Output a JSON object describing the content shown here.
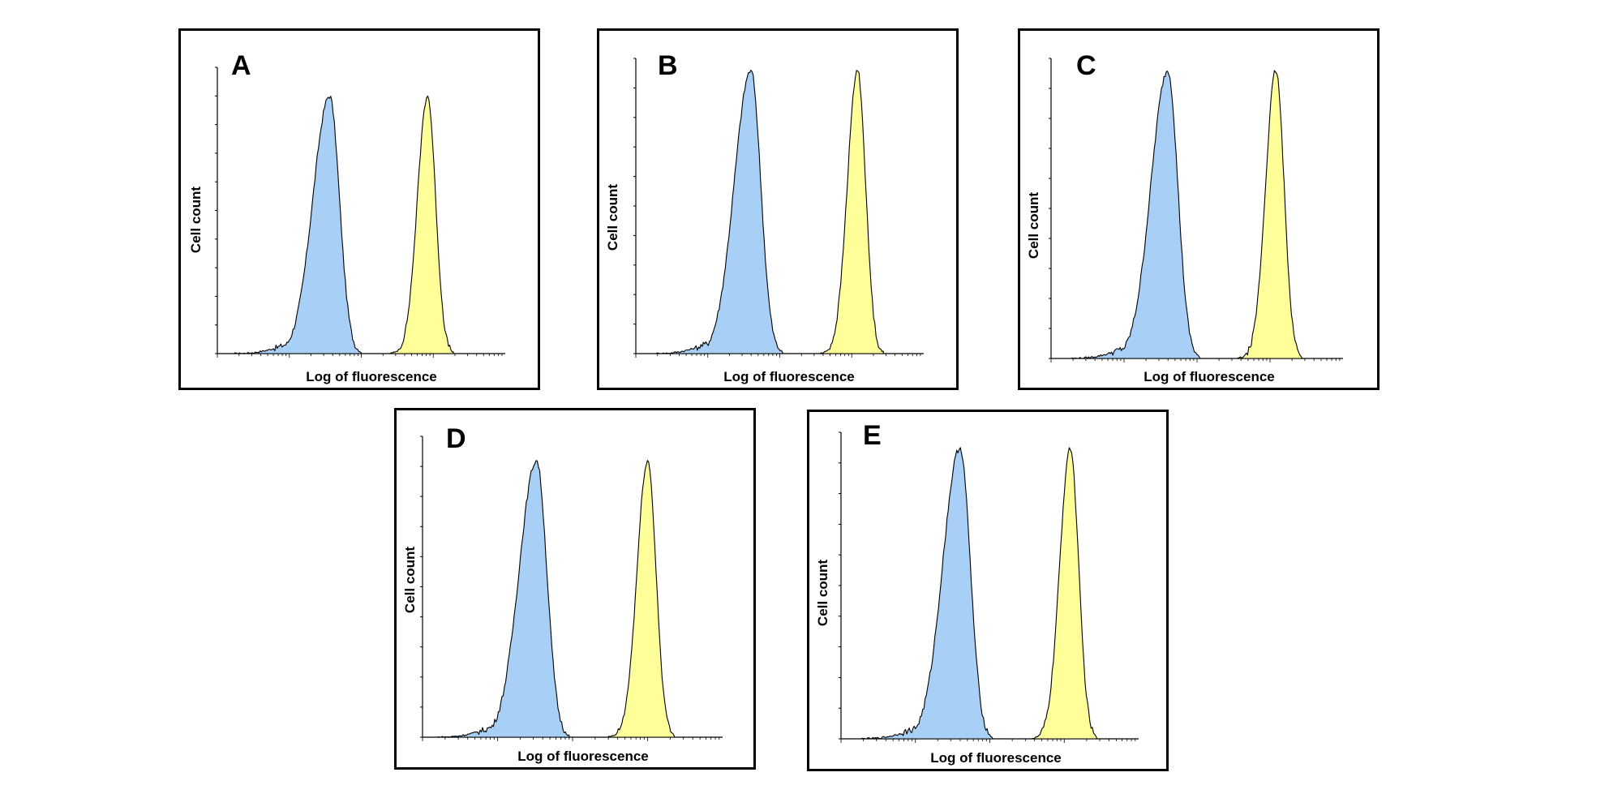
{
  "figure": {
    "x_axis_label": "Log of fluorescence",
    "y_axis_label": "Cell count"
  },
  "colors": {
    "series_1": "#a8cff5",
    "series_2": "#ffff99",
    "outline": "#000000"
  },
  "chart_data": [
    {
      "panel": "A",
      "type": "area",
      "xlabel": "Log of fluorescence",
      "ylabel": "Cell count",
      "series": [
        {
          "name": "blue histogram",
          "peak_position": 0.39,
          "peak_height": 0.9
        },
        {
          "name": "yellow histogram",
          "peak_position": 0.73,
          "peak_height": 0.9
        }
      ]
    },
    {
      "panel": "B",
      "type": "area",
      "xlabel": "Log of fluorescence",
      "ylabel": "Cell count",
      "series": [
        {
          "name": "blue histogram",
          "peak_position": 0.4,
          "peak_height": 0.96
        },
        {
          "name": "yellow histogram",
          "peak_position": 0.77,
          "peak_height": 0.96
        }
      ]
    },
    {
      "panel": "C",
      "type": "area",
      "xlabel": "Log of fluorescence",
      "ylabel": "Cell count",
      "series": [
        {
          "name": "blue histogram",
          "peak_position": 0.4,
          "peak_height": 0.96
        },
        {
          "name": "yellow histogram",
          "peak_position": 0.77,
          "peak_height": 0.96
        }
      ]
    },
    {
      "panel": "D",
      "type": "area",
      "xlabel": "Log of fluorescence",
      "ylabel": "Cell count",
      "series": [
        {
          "name": "blue histogram",
          "peak_position": 0.38,
          "peak_height": 0.92
        },
        {
          "name": "yellow histogram",
          "peak_position": 0.75,
          "peak_height": 0.92
        }
      ]
    },
    {
      "panel": "E",
      "type": "area",
      "xlabel": "Log of fluorescence",
      "ylabel": "Cell count",
      "series": [
        {
          "name": "blue histogram",
          "peak_position": 0.4,
          "peak_height": 0.95
        },
        {
          "name": "yellow histogram",
          "peak_position": 0.77,
          "peak_height": 0.95
        }
      ]
    }
  ]
}
